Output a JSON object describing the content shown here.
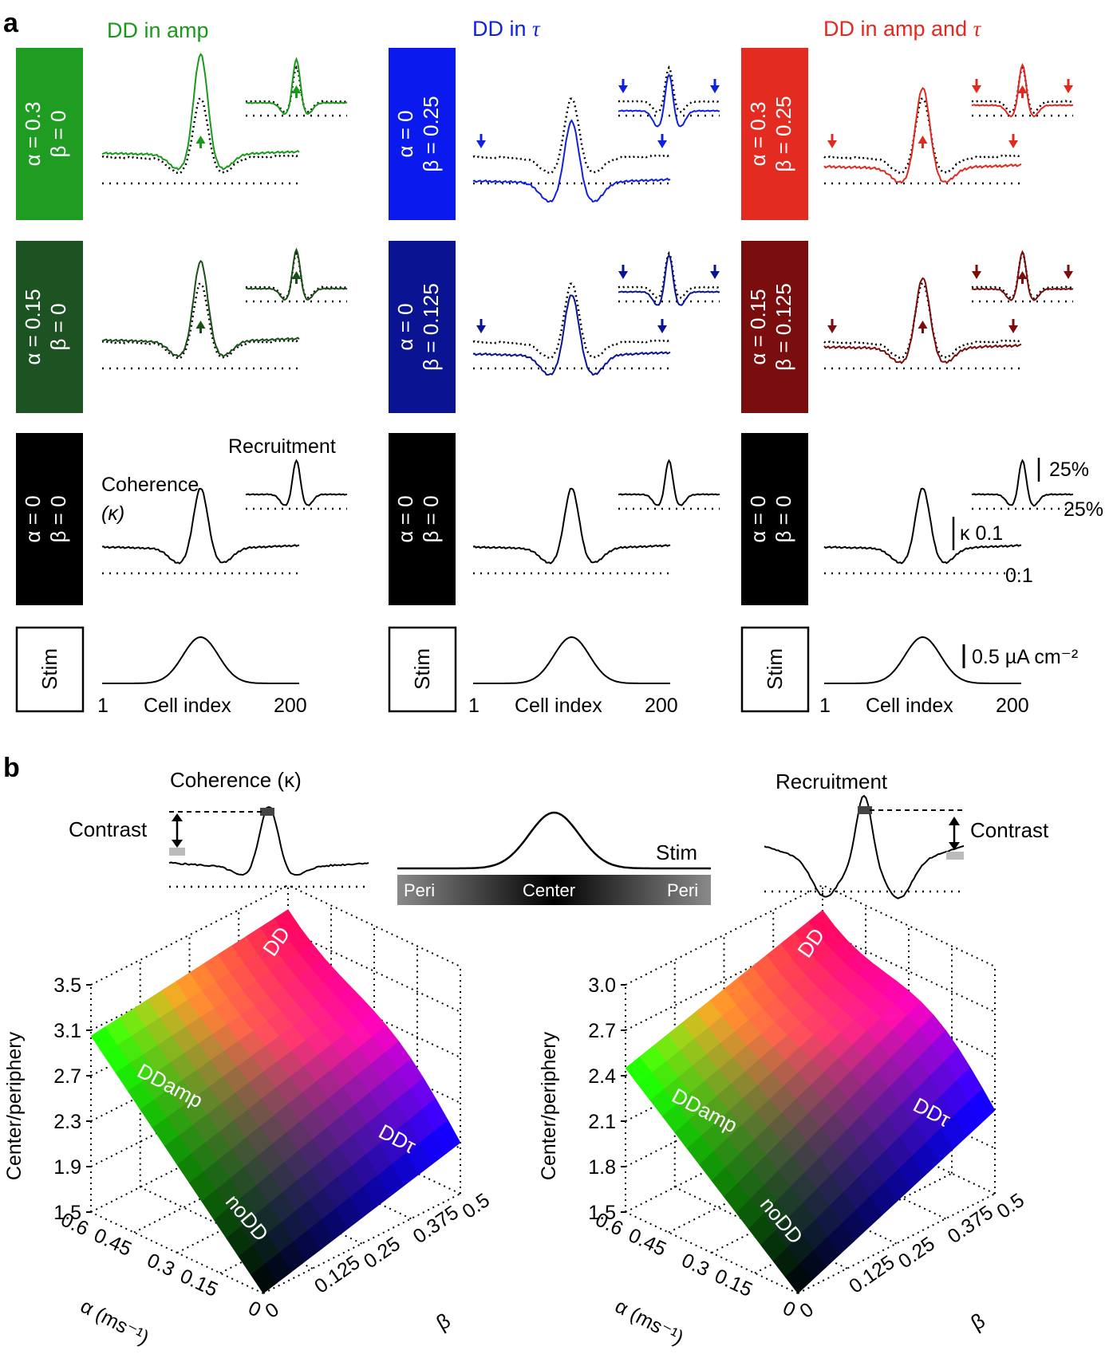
{
  "panel_a": {
    "label": "a",
    "columns": [
      {
        "title": "DD in amp",
        "color": "#1a9a1a"
      },
      {
        "title": "DD in τ",
        "color": "#1020e0"
      },
      {
        "title": "DD in amp and τ",
        "color": "#e02a20"
      }
    ],
    "rows": [
      [
        {
          "line1": "α = 0.3",
          "line2": "β = 0",
          "fill": "#1f9d22"
        },
        {
          "line1": "α = 0",
          "line2": "β = 0.25",
          "fill": "#0a1aee"
        },
        {
          "line1": "α = 0.3",
          "line2": "β = 0.25",
          "fill": "#e32b22"
        }
      ],
      [
        {
          "line1": "α = 0.15",
          "line2": "β = 0",
          "fill": "#1d5323"
        },
        {
          "line1": "α = 0",
          "line2": "β = 0.125",
          "fill": "#0a1493"
        },
        {
          "line1": "α = 0.15",
          "line2": "β = 0.125",
          "fill": "#7a0d0d"
        }
      ],
      [
        {
          "line1": "α = 0",
          "line2": "β = 0",
          "fill": "#000000"
        },
        {
          "line1": "α = 0",
          "line2": "β = 0",
          "fill": "#000000"
        },
        {
          "line1": "α = 0",
          "line2": "β = 0",
          "fill": "#000000"
        }
      ]
    ],
    "stim_label": "Stim",
    "coherence_label": "Coherence",
    "kappa_label": "(κ)",
    "recruitment_label": "Recruitment",
    "scalebars": {
      "pct_a": "25%",
      "pct_b": "25%",
      "kappa": "κ 0.1",
      "kappa_b": "0.1",
      "current": "0.5 µA cm⁻²"
    },
    "axis": {
      "start": "1",
      "label": "Cell index",
      "end": "200"
    }
  },
  "panel_b": {
    "label": "b",
    "coherence_title": "Coherence (κ)",
    "recruitment_title": "Recruitment",
    "contrast_label": "Contrast",
    "stim_label": "Stim",
    "gradient": {
      "left": "Peri",
      "center": "Center",
      "right": "Peri"
    },
    "surface_labels": {
      "dd": "DD",
      "ddamp": "DDamp",
      "ddtau": "DDτ",
      "nodd": "noDD"
    },
    "ylabel": "Center/periphery",
    "alpha_label": "α (ms⁻¹)",
    "beta_label": "β"
  },
  "chart_data": [
    {
      "type": "surface",
      "title": "Coherence (κ)",
      "zlabel": "Center/periphery",
      "zticks": [
        "3.5",
        "3.1",
        "2.7",
        "2.3",
        "1.9",
        "1.5"
      ],
      "zlim": [
        1.5,
        3.5
      ],
      "alpha_ticks": [
        "0.6",
        "0.45",
        "0.3",
        "0.15",
        "0"
      ],
      "beta_ticks": [
        "0",
        "0.125",
        "0.25",
        "0.375",
        "0.5"
      ],
      "xlabel": "α (ms⁻¹)",
      "ylabel": "β",
      "corners": {
        "noDD": 1.5,
        "DDamp": 3.05,
        "DDtau": 1.95,
        "DD": 3.4
      }
    },
    {
      "type": "surface",
      "title": "Recruitment",
      "zlabel": "Center/periphery",
      "zticks": [
        "3.0",
        "2.7",
        "2.4",
        "2.1",
        "1.8",
        "1.5"
      ],
      "zlim": [
        1.5,
        3.0
      ],
      "alpha_ticks": [
        "0.6",
        "0.45",
        "0.3",
        "0.15",
        "0"
      ],
      "beta_ticks": [
        "0",
        "0.125",
        "0.25",
        "0.375",
        "0.5"
      ],
      "xlabel": "α (ms⁻¹)",
      "ylabel": "β",
      "corners": {
        "noDD": 1.5,
        "DDamp": 2.45,
        "DDtau": 2.05,
        "DD": 2.95
      }
    }
  ]
}
